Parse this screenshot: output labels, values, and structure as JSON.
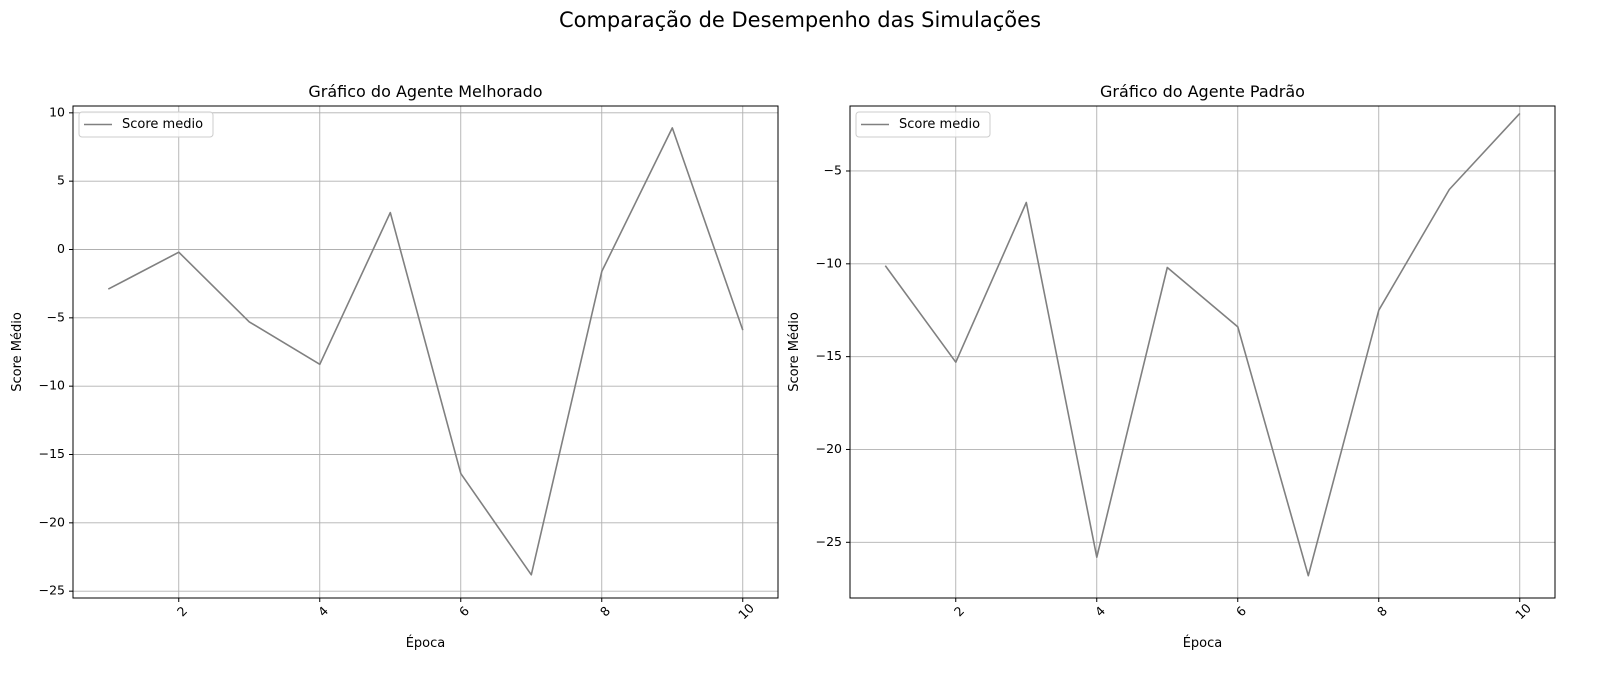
{
  "figure": {
    "title": "Comparação de Desempenho das Simulações"
  },
  "chart_data": [
    {
      "type": "line",
      "title": "Gráfico do Agente Melhorado",
      "xlabel": "Época",
      "ylabel": "Score Médio",
      "x": [
        1,
        2,
        3,
        4,
        5,
        6,
        7,
        8,
        9,
        10
      ],
      "series": [
        {
          "name": "Score medio",
          "values": [
            -2.9,
            -0.2,
            -5.3,
            -8.4,
            2.7,
            -16.4,
            -23.8,
            -1.6,
            8.9,
            -5.9
          ],
          "color": "#808080"
        }
      ],
      "xlim": [
        0.5,
        10.5
      ],
      "ylim": [
        -25.5,
        10.5
      ],
      "xticks": [
        2,
        4,
        6,
        8,
        10
      ],
      "xtick_labels": [
        "2",
        "4",
        "6",
        "8",
        "10"
      ],
      "yticks": [
        10,
        5,
        0,
        -5,
        -10,
        -15,
        -20,
        -25
      ],
      "ytick_labels": [
        "10",
        "5",
        "0",
        "−5",
        "−10",
        "−15",
        "−20",
        "−25"
      ],
      "grid": true,
      "legend": "top-left"
    },
    {
      "type": "line",
      "title": "Gráfico do Agente Padrão",
      "xlabel": "Época",
      "ylabel": "Score Médio",
      "x": [
        1,
        2,
        3,
        4,
        5,
        6,
        7,
        8,
        9,
        10
      ],
      "series": [
        {
          "name": "Score medio",
          "values": [
            -10.1,
            -15.3,
            -6.7,
            -25.8,
            -10.2,
            -13.4,
            -26.8,
            -12.5,
            -6.0,
            -1.9
          ],
          "color": "#808080"
        }
      ],
      "xlim": [
        0.5,
        10.5
      ],
      "ylim": [
        -28.0,
        -1.5
      ],
      "xticks": [
        2,
        4,
        6,
        8,
        10
      ],
      "xtick_labels": [
        "2",
        "4",
        "6",
        "8",
        "10"
      ],
      "yticks": [
        -5,
        -10,
        -15,
        -20,
        -25
      ],
      "ytick_labels": [
        "−5",
        "−10",
        "−15",
        "−20",
        "−25"
      ],
      "grid": true,
      "legend": "top-left"
    }
  ]
}
